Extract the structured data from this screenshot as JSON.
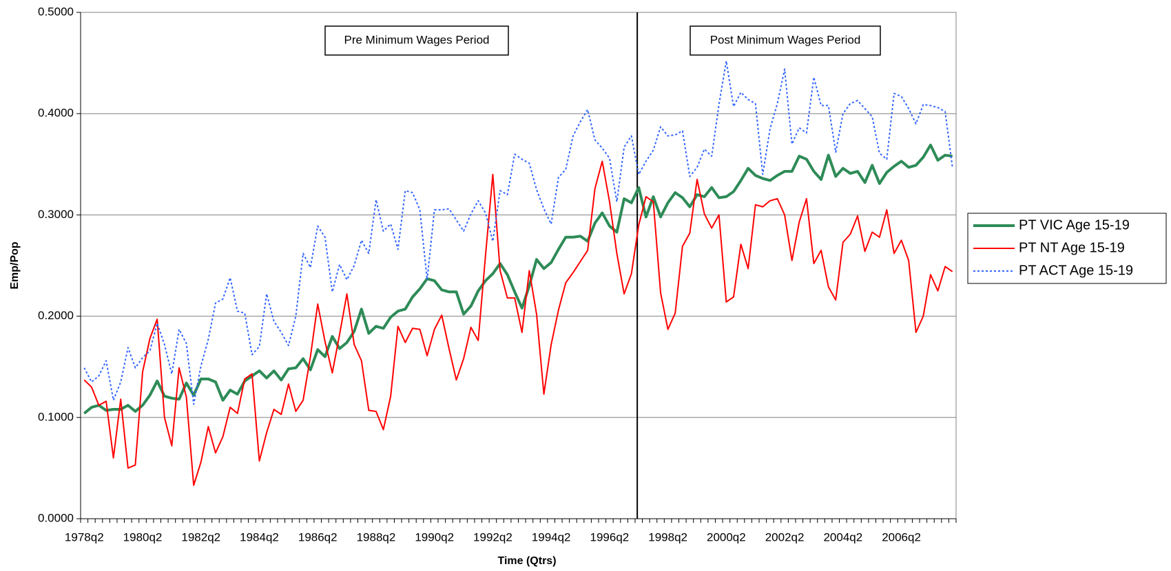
{
  "chart_data": {
    "type": "line",
    "x_label": "Time (Qtrs)",
    "y_label": "Emp/Pop",
    "annotations": [
      "Pre Minimum Wages Period",
      "Post Minimum Wages Period"
    ],
    "categories": [
      "1978q2",
      null,
      null,
      null,
      null,
      null,
      null,
      null,
      "1980q2",
      null,
      null,
      null,
      null,
      null,
      null,
      null,
      "1982q2",
      null,
      null,
      null,
      null,
      null,
      null,
      null,
      "1984q2",
      null,
      null,
      null,
      null,
      null,
      null,
      null,
      "1986q2",
      null,
      null,
      null,
      null,
      null,
      null,
      null,
      "1988q2",
      null,
      null,
      null,
      null,
      null,
      null,
      null,
      "1990q2",
      null,
      null,
      null,
      null,
      null,
      null,
      null,
      "1992q2",
      null,
      null,
      null,
      null,
      null,
      null,
      null,
      "1994q2",
      null,
      null,
      null,
      null,
      null,
      null,
      null,
      "1996q2",
      null,
      null,
      null,
      null,
      null,
      null,
      null,
      "1998q2",
      null,
      null,
      null,
      null,
      null,
      null,
      null,
      "2000q2",
      null,
      null,
      null,
      null,
      null,
      null,
      null,
      "2002q2",
      null,
      null,
      null,
      null,
      null,
      null,
      null,
      "2004q2",
      null,
      null,
      null,
      null,
      null,
      null,
      null,
      "2006q2",
      null,
      null,
      null,
      null,
      null,
      null,
      null
    ],
    "ylim": [
      0,
      0.5
    ],
    "yticks": [
      {
        "value": 0,
        "label": "0.0000"
      },
      {
        "value": 0.1,
        "label": "0.1000"
      },
      {
        "value": 0.2,
        "label": "0.2000"
      },
      {
        "value": 0.3,
        "label": "0.3000"
      },
      {
        "value": 0.4,
        "label": "0.4000"
      },
      {
        "value": 0.5,
        "label": "0.5000"
      }
    ],
    "grid": true,
    "legend": "right",
    "series": [
      {
        "name": "PT VIC Age 15-19",
        "color": "#2e8b57",
        "width": 4,
        "line_style": "solid",
        "values": [
          0.104,
          0.11,
          0.112,
          0.107,
          0.108,
          0.108,
          0.112,
          0.106,
          0.112,
          0.122,
          0.136,
          0.121,
          0.119,
          0.118,
          0.134,
          0.122,
          0.138,
          0.138,
          0.135,
          0.117,
          0.127,
          0.123,
          0.136,
          0.141,
          0.146,
          0.139,
          0.146,
          0.137,
          0.148,
          0.149,
          0.158,
          0.147,
          0.167,
          0.16,
          0.18,
          0.168,
          0.174,
          0.185,
          0.207,
          0.183,
          0.19,
          0.188,
          0.199,
          0.205,
          0.207,
          0.219,
          0.227,
          0.237,
          0.235,
          0.226,
          0.224,
          0.224,
          0.202,
          0.21,
          0.225,
          0.235,
          0.242,
          0.252,
          0.241,
          0.224,
          0.208,
          0.23,
          0.256,
          0.247,
          0.253,
          0.266,
          0.278,
          0.278,
          0.279,
          0.274,
          0.292,
          0.302,
          0.289,
          0.283,
          0.316,
          0.312,
          0.327,
          0.298,
          0.318,
          0.298,
          0.312,
          0.322,
          0.317,
          0.308,
          0.32,
          0.318,
          0.327,
          0.317,
          0.318,
          0.323,
          0.334,
          0.346,
          0.339,
          0.336,
          0.334,
          0.339,
          0.343,
          0.343,
          0.358,
          0.355,
          0.343,
          0.335,
          0.359,
          0.338,
          0.346,
          0.341,
          0.343,
          0.332,
          0.349,
          0.331,
          0.342,
          0.348,
          0.353,
          0.347,
          0.349,
          0.357,
          0.369,
          0.354,
          0.359,
          0.358
        ]
      },
      {
        "name": "PT NT Age 15-19",
        "color": "#ff0000",
        "width": 2,
        "line_style": "solid",
        "values": [
          0.137,
          0.13,
          0.112,
          0.116,
          0.06,
          0.118,
          0.05,
          0.053,
          0.145,
          0.178,
          0.197,
          0.1,
          0.072,
          0.149,
          0.12,
          0.033,
          0.056,
          0.091,
          0.065,
          0.081,
          0.11,
          0.104,
          0.138,
          0.143,
          0.057,
          0.085,
          0.108,
          0.103,
          0.133,
          0.106,
          0.117,
          0.16,
          0.212,
          0.175,
          0.144,
          0.182,
          0.222,
          0.172,
          0.156,
          0.107,
          0.106,
          0.088,
          0.121,
          0.19,
          0.174,
          0.188,
          0.187,
          0.161,
          0.187,
          0.201,
          0.168,
          0.137,
          0.158,
          0.189,
          0.176,
          0.26,
          0.34,
          0.245,
          0.218,
          0.218,
          0.184,
          0.245,
          0.202,
          0.123,
          0.172,
          0.206,
          0.233,
          0.243,
          0.254,
          0.265,
          0.326,
          0.353,
          0.313,
          0.262,
          0.222,
          0.242,
          0.29,
          0.318,
          0.313,
          0.223,
          0.187,
          0.203,
          0.269,
          0.282,
          0.335,
          0.301,
          0.287,
          0.3,
          0.214,
          0.219,
          0.271,
          0.247,
          0.31,
          0.308,
          0.314,
          0.316,
          0.3,
          0.255,
          0.293,
          0.316,
          0.252,
          0.265,
          0.229,
          0.216,
          0.273,
          0.281,
          0.299,
          0.264,
          0.283,
          0.278,
          0.305,
          0.262,
          0.275,
          0.255,
          0.184,
          0.2,
          0.241,
          0.225,
          0.249,
          0.244
        ]
      },
      {
        "name": "PT ACT Age 15-19",
        "color": "#3366ff",
        "width": 2,
        "line_style": "dotted",
        "values": [
          0.149,
          0.135,
          0.141,
          0.156,
          0.117,
          0.135,
          0.169,
          0.149,
          0.159,
          0.166,
          0.193,
          0.172,
          0.143,
          0.187,
          0.173,
          0.113,
          0.151,
          0.177,
          0.213,
          0.217,
          0.238,
          0.205,
          0.203,
          0.162,
          0.17,
          0.222,
          0.195,
          0.184,
          0.171,
          0.2,
          0.262,
          0.248,
          0.289,
          0.278,
          0.224,
          0.251,
          0.236,
          0.25,
          0.275,
          0.262,
          0.315,
          0.284,
          0.291,
          0.266,
          0.324,
          0.322,
          0.305,
          0.236,
          0.305,
          0.305,
          0.306,
          0.295,
          0.284,
          0.301,
          0.314,
          0.302,
          0.274,
          0.324,
          0.32,
          0.36,
          0.355,
          0.351,
          0.325,
          0.306,
          0.291,
          0.337,
          0.345,
          0.378,
          0.392,
          0.404,
          0.374,
          0.366,
          0.356,
          0.313,
          0.367,
          0.378,
          0.34,
          0.353,
          0.364,
          0.387,
          0.378,
          0.379,
          0.383,
          0.338,
          0.347,
          0.365,
          0.358,
          0.409,
          0.452,
          0.407,
          0.421,
          0.414,
          0.41,
          0.34,
          0.385,
          0.41,
          0.444,
          0.37,
          0.386,
          0.381,
          0.436,
          0.408,
          0.408,
          0.362,
          0.4,
          0.41,
          0.413,
          0.405,
          0.397,
          0.361,
          0.355,
          0.42,
          0.417,
          0.405,
          0.39,
          0.409,
          0.408,
          0.406,
          0.402,
          0.347
        ]
      }
    ]
  }
}
